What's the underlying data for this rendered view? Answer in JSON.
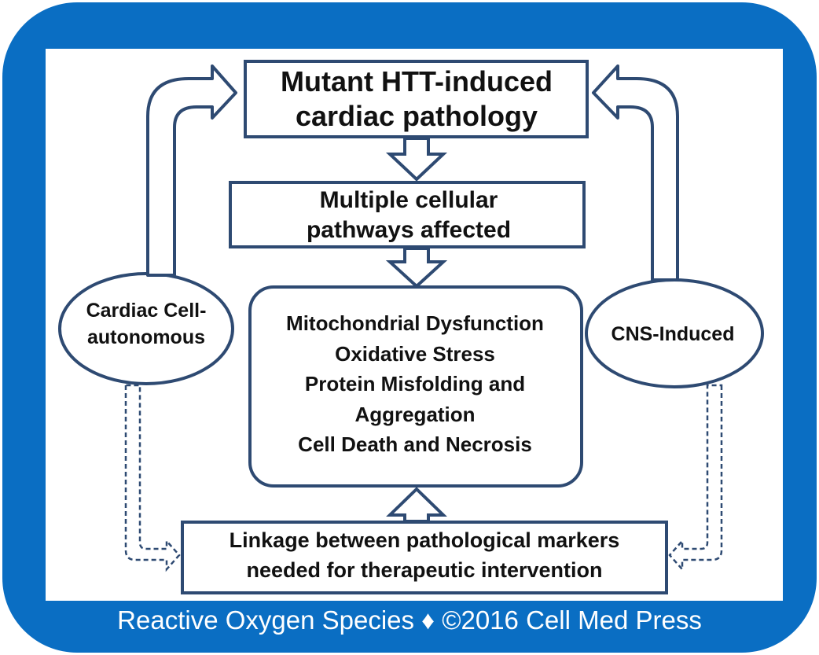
{
  "diagram": {
    "top_box": {
      "lines": [
        "Mutant HTT-induced",
        "cardiac pathology"
      ]
    },
    "middle_box": {
      "lines": [
        "Multiple cellular",
        "pathways affected"
      ]
    },
    "effects_box": {
      "lines": [
        "Mitochondrial Dysfunction",
        "Oxidative Stress",
        "Protein Misfolding and",
        "Aggregation",
        "Cell Death and Necrosis"
      ]
    },
    "left_oval": {
      "lines": [
        "Cardiac Cell-",
        "autonomous"
      ]
    },
    "right_oval": {
      "lines": [
        "CNS-Induced"
      ]
    },
    "bottom_box": {
      "lines": [
        "Linkage between pathological markers",
        "needed for therapeutic intervention"
      ]
    }
  },
  "footer": {
    "text": "Reactive Oxygen Species ♦ ©2016 Cell Med Press"
  },
  "colors": {
    "frame": "#0a6ec3",
    "stroke": "#2e4a72",
    "text": "#111111",
    "footer_text": "#ffffff"
  }
}
